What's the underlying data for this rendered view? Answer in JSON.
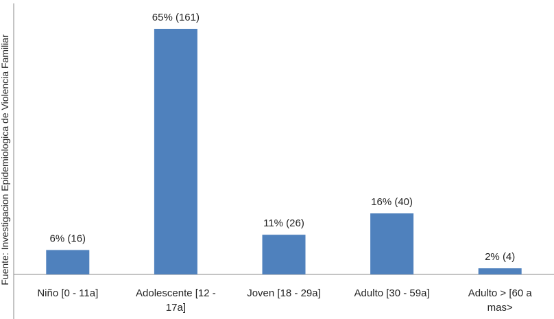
{
  "chart_data": {
    "type": "bar",
    "categories": [
      [
        "Niño  [0 - 11a]"
      ],
      [
        "Adolescente [12 -",
        "17a]"
      ],
      [
        "Joven [18 - 29a]"
      ],
      [
        "Adulto [30 - 59a]"
      ],
      [
        "Adulto >  [60 a",
        "mas>"
      ]
    ],
    "values": [
      16,
      161,
      26,
      40,
      4
    ],
    "data_labels": [
      "6% (16)",
      "65% (161)",
      "11% (26)",
      "16% (40)",
      "2% (4)"
    ],
    "ylabel": "Fuente: Investigacion Epidemiologica de Violencia Familiar",
    "ylim": [
      0,
      161
    ],
    "bar_color": "#4f81bd",
    "axis_color": "#888888",
    "grid": false,
    "legend": "none"
  }
}
